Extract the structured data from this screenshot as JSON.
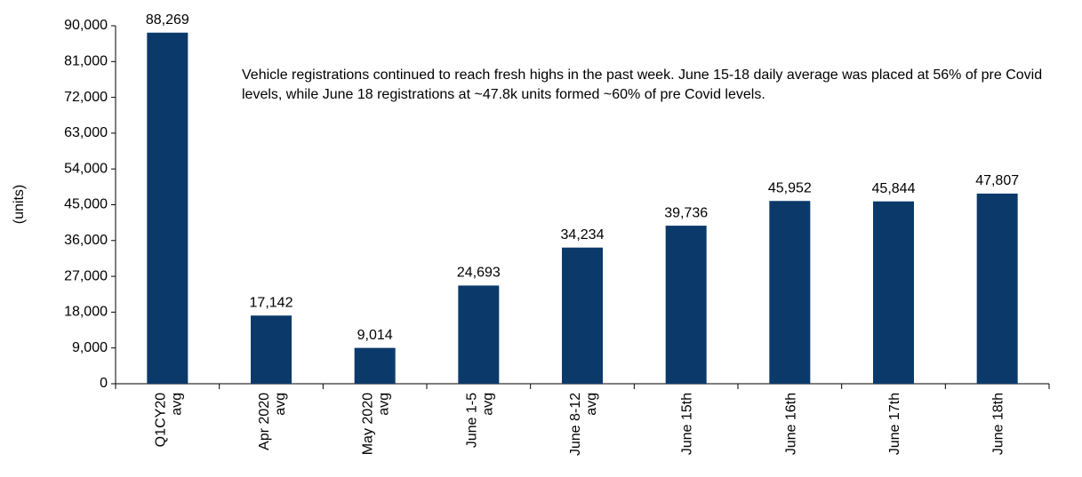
{
  "chart_data": {
    "type": "bar",
    "y_label": "(units)",
    "annotation": "Vehicle registrations continued to reach fresh highs in the past week. June 15-18 daily average was placed at 56% of pre Covid levels, while June 18 registrations at ~47.8k units formed ~60% of pre Covid levels.",
    "categories": [
      "Q1CY20\navg",
      "Apr 2020\navg",
      "May 2020\navg",
      "June 1-5\navg",
      "June 8-12\navg",
      "June 15th",
      "June 16th",
      "June 17th",
      "June 18th"
    ],
    "values": [
      88269,
      17142,
      9014,
      24693,
      34234,
      39736,
      45952,
      45844,
      47807
    ],
    "value_labels": [
      "88,269",
      "17,142",
      "9,014",
      "24,693",
      "34,234",
      "39,736",
      "45,952",
      "45,844",
      "47,807"
    ],
    "color": "#0b3a6a",
    "ylim": [
      0,
      90000
    ],
    "yticks": [
      0,
      {
        "value": 9000,
        "label": "9,000"
      },
      {
        "value": 18000,
        "label": "18,000"
      },
      {
        "value": 27000,
        "label": "27,000"
      },
      {
        "value": 36000,
        "label": "36,000"
      },
      {
        "value": 45000,
        "label": "45,000"
      },
      {
        "value": 54000,
        "label": "54,000"
      },
      {
        "value": 63000,
        "label": "63,000"
      },
      {
        "value": 72000,
        "label": "72,000"
      },
      {
        "value": 81000,
        "label": "81,000"
      },
      {
        "value": 90000,
        "label": "90,000"
      }
    ],
    "grid": false
  }
}
